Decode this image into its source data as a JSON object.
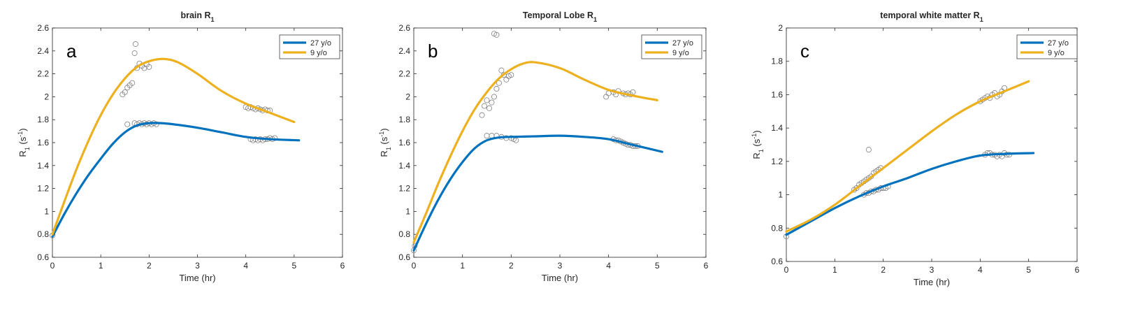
{
  "colors": {
    "series_27": "#0072BD",
    "series_9": "#EDB120",
    "markers": "#808080",
    "axis": "#262626"
  },
  "chart_data": [
    {
      "type": "line",
      "panel_letter": "a",
      "title": "brain R",
      "title_subscript": "1",
      "xlabel": "Time (hr)",
      "ylabel": "R",
      "ylabel_sub": "1",
      "ylabel_unit_prefix": " (s",
      "ylabel_unit_sup": "-1",
      "ylabel_unit_suffix": ")",
      "xlim": [
        0,
        6
      ],
      "ylim": [
        0.6,
        2.6
      ],
      "xticks": [
        0,
        1,
        2,
        3,
        4,
        5,
        6
      ],
      "xtick_labels": [
        "0",
        "1",
        "2",
        "3",
        "4",
        "5",
        "6"
      ],
      "yticks": [
        0.6,
        0.8,
        1.0,
        1.2,
        1.4,
        1.6,
        1.8,
        2.0,
        2.2,
        2.4,
        2.6
      ],
      "ytick_labels": [
        "0.6",
        "0.8",
        "1",
        "1.2",
        "1.4",
        "1.6",
        "1.8",
        "2",
        "2.2",
        "2.4",
        "2.6"
      ],
      "legend": [
        "27 y/o",
        "9 y/o"
      ],
      "series": [
        {
          "name": "27 y/o",
          "color_key": "series_27",
          "x": [
            0,
            0.25,
            0.5,
            0.75,
            1.0,
            1.25,
            1.5,
            1.75,
            2.0,
            2.25,
            2.5,
            3.0,
            3.5,
            4.0,
            4.5,
            5.1
          ],
          "y": [
            0.78,
            0.98,
            1.16,
            1.32,
            1.46,
            1.59,
            1.69,
            1.75,
            1.77,
            1.77,
            1.76,
            1.73,
            1.69,
            1.65,
            1.63,
            1.62
          ]
        },
        {
          "name": "9 y/o",
          "color_key": "series_9",
          "x": [
            0,
            0.25,
            0.5,
            0.75,
            1.0,
            1.25,
            1.5,
            1.75,
            2.0,
            2.3,
            2.6,
            3.0,
            3.5,
            4.0,
            4.5,
            5.0
          ],
          "y": [
            0.8,
            1.09,
            1.37,
            1.62,
            1.84,
            2.02,
            2.16,
            2.26,
            2.31,
            2.33,
            2.3,
            2.2,
            2.05,
            1.94,
            1.86,
            1.78
          ]
        }
      ],
      "markers": {
        "x": [
          0,
          1.45,
          1.5,
          1.55,
          1.6,
          1.65,
          1.7,
          1.72,
          1.75,
          1.8,
          1.85,
          1.9,
          1.95,
          2.0,
          1.55,
          1.7,
          1.75,
          1.8,
          1.85,
          1.9,
          1.95,
          2.0,
          2.05,
          2.1,
          2.15,
          4.0,
          4.05,
          4.1,
          4.15,
          4.2,
          4.25,
          4.3,
          4.35,
          4.4,
          4.45,
          4.5,
          4.1,
          4.15,
          4.2,
          4.25,
          4.3,
          4.35,
          4.4,
          4.45,
          4.5,
          4.55,
          4.6
        ],
        "y": [
          0.79,
          2.02,
          2.04,
          2.08,
          2.1,
          2.12,
          2.38,
          2.46,
          2.25,
          2.29,
          2.27,
          2.25,
          2.28,
          2.26,
          1.76,
          1.77,
          1.76,
          1.77,
          1.76,
          1.77,
          1.76,
          1.77,
          1.76,
          1.77,
          1.76,
          1.91,
          1.9,
          1.91,
          1.9,
          1.89,
          1.9,
          1.89,
          1.88,
          1.89,
          1.88,
          1.88,
          1.63,
          1.62,
          1.63,
          1.62,
          1.63,
          1.62,
          1.63,
          1.63,
          1.64,
          1.63,
          1.64
        ]
      }
    },
    {
      "type": "line",
      "panel_letter": "b",
      "title": "Temporal Lobe R",
      "title_subscript": "1",
      "xlabel": "Time (hr)",
      "ylabel": "R",
      "ylabel_sub": "1",
      "ylabel_unit_prefix": " (s",
      "ylabel_unit_sup": "-1",
      "ylabel_unit_suffix": ")",
      "xlim": [
        0,
        6
      ],
      "ylim": [
        0.6,
        2.6
      ],
      "xticks": [
        0,
        1,
        2,
        3,
        4,
        5,
        6
      ],
      "xtick_labels": [
        "0",
        "1",
        "2",
        "3",
        "4",
        "5",
        "6"
      ],
      "yticks": [
        0.6,
        0.8,
        1.0,
        1.2,
        1.4,
        1.6,
        1.8,
        2.0,
        2.2,
        2.4,
        2.6
      ],
      "ytick_labels": [
        "0.6",
        "0.8",
        "1",
        "1.2",
        "1.4",
        "1.6",
        "1.8",
        "2",
        "2.2",
        "2.4",
        "2.6"
      ],
      "legend": [
        "27 y/o",
        "9 y/o"
      ],
      "series": [
        {
          "name": "27 y/o",
          "color_key": "series_27",
          "x": [
            0,
            0.25,
            0.5,
            0.75,
            1.0,
            1.25,
            1.5,
            1.75,
            2.0,
            2.5,
            3.0,
            3.5,
            4.0,
            4.5,
            5.1
          ],
          "y": [
            0.66,
            0.89,
            1.1,
            1.28,
            1.43,
            1.55,
            1.62,
            1.645,
            1.65,
            1.655,
            1.66,
            1.65,
            1.63,
            1.58,
            1.52
          ]
        },
        {
          "name": "9 y/o",
          "color_key": "series_9",
          "x": [
            0,
            0.25,
            0.5,
            0.75,
            1.0,
            1.25,
            1.5,
            1.75,
            2.0,
            2.25,
            2.5,
            3.0,
            3.5,
            4.0,
            4.5,
            5.0
          ],
          "y": [
            0.73,
            0.98,
            1.24,
            1.48,
            1.7,
            1.89,
            2.04,
            2.16,
            2.24,
            2.29,
            2.3,
            2.25,
            2.15,
            2.06,
            2.01,
            1.97
          ]
        }
      ],
      "markers": {
        "x": [
          0,
          0.02,
          1.4,
          1.45,
          1.5,
          1.55,
          1.6,
          1.65,
          1.7,
          1.75,
          1.8,
          1.85,
          1.9,
          1.95,
          2.0,
          1.65,
          1.7,
          1.5,
          1.6,
          1.7,
          1.8,
          1.9,
          2.0,
          2.05,
          2.1,
          3.95,
          4.0,
          4.1,
          4.15,
          4.2,
          4.3,
          4.35,
          4.4,
          4.45,
          4.5,
          4.1,
          4.15,
          4.2,
          4.25,
          4.3,
          4.35,
          4.4,
          4.45,
          4.5,
          4.55,
          4.6
        ],
        "y": [
          0.66,
          0.7,
          1.84,
          1.92,
          1.97,
          1.9,
          1.95,
          2.0,
          2.07,
          2.12,
          2.23,
          2.19,
          2.15,
          2.18,
          2.19,
          2.55,
          2.54,
          1.66,
          1.66,
          1.66,
          1.65,
          1.64,
          1.64,
          1.63,
          1.62,
          2.0,
          2.03,
          2.04,
          2.02,
          2.05,
          2.03,
          2.02,
          2.03,
          2.02,
          2.04,
          1.63,
          1.62,
          1.62,
          1.61,
          1.6,
          1.59,
          1.58,
          1.58,
          1.57,
          1.57,
          1.57
        ]
      }
    },
    {
      "type": "line",
      "panel_letter": "c",
      "title": "temporal white matter R",
      "title_subscript": "1",
      "xlabel": "Time (hr)",
      "ylabel": "R",
      "ylabel_sub": "1",
      "ylabel_unit_prefix": " (s",
      "ylabel_unit_sup": "-1",
      "ylabel_unit_suffix": ")",
      "xlim": [
        0,
        6
      ],
      "ylim": [
        0.6,
        2.0
      ],
      "xticks": [
        0,
        1,
        2,
        3,
        4,
        5,
        6
      ],
      "xtick_labels": [
        "0",
        "1",
        "2",
        "3",
        "4",
        "5",
        "6"
      ],
      "yticks": [
        0.6,
        0.8,
        1.0,
        1.2,
        1.4,
        1.6,
        1.8,
        2.0
      ],
      "ytick_labels": [
        "0.6",
        "0.8",
        "1",
        "1.2",
        "1.4",
        "1.6",
        "1.8",
        "2"
      ],
      "legend": [
        "27 y/o",
        "9 y/o"
      ],
      "series": [
        {
          "name": "27 y/o",
          "color_key": "series_27",
          "x": [
            0,
            0.5,
            1.0,
            1.5,
            2.0,
            2.5,
            3.0,
            3.5,
            4.0,
            4.5,
            5.1
          ],
          "y": [
            0.76,
            0.84,
            0.92,
            0.99,
            1.05,
            1.1,
            1.155,
            1.2,
            1.235,
            1.245,
            1.25
          ]
        },
        {
          "name": "9 y/o",
          "color_key": "series_9",
          "x": [
            0,
            0.5,
            1.0,
            1.5,
            2.0,
            2.5,
            3.0,
            3.5,
            4.0,
            4.5,
            5.0
          ],
          "y": [
            0.78,
            0.85,
            0.94,
            1.05,
            1.16,
            1.27,
            1.38,
            1.48,
            1.56,
            1.62,
            1.68
          ]
        }
      ],
      "markers": {
        "x": [
          0,
          1.4,
          1.45,
          1.5,
          1.55,
          1.6,
          1.65,
          1.7,
          1.75,
          1.8,
          1.85,
          1.9,
          1.95,
          1.7,
          1.6,
          1.65,
          1.7,
          1.75,
          1.8,
          1.85,
          1.9,
          1.95,
          2.0,
          2.05,
          2.1,
          4.0,
          4.05,
          4.1,
          4.15,
          4.2,
          4.25,
          4.3,
          4.35,
          4.4,
          4.45,
          4.5,
          4.1,
          4.15,
          4.2,
          4.25,
          4.3,
          4.35,
          4.4,
          4.45,
          4.5,
          4.55,
          4.6
        ],
        "y": [
          0.75,
          1.03,
          1.04,
          1.06,
          1.07,
          1.08,
          1.09,
          1.1,
          1.11,
          1.13,
          1.14,
          1.15,
          1.16,
          1.27,
          1.0,
          1.01,
          1.01,
          1.02,
          1.02,
          1.03,
          1.03,
          1.04,
          1.04,
          1.04,
          1.05,
          1.56,
          1.57,
          1.58,
          1.59,
          1.58,
          1.6,
          1.61,
          1.59,
          1.6,
          1.62,
          1.64,
          1.24,
          1.25,
          1.25,
          1.24,
          1.24,
          1.23,
          1.24,
          1.23,
          1.25,
          1.24,
          1.24
        ]
      }
    }
  ]
}
